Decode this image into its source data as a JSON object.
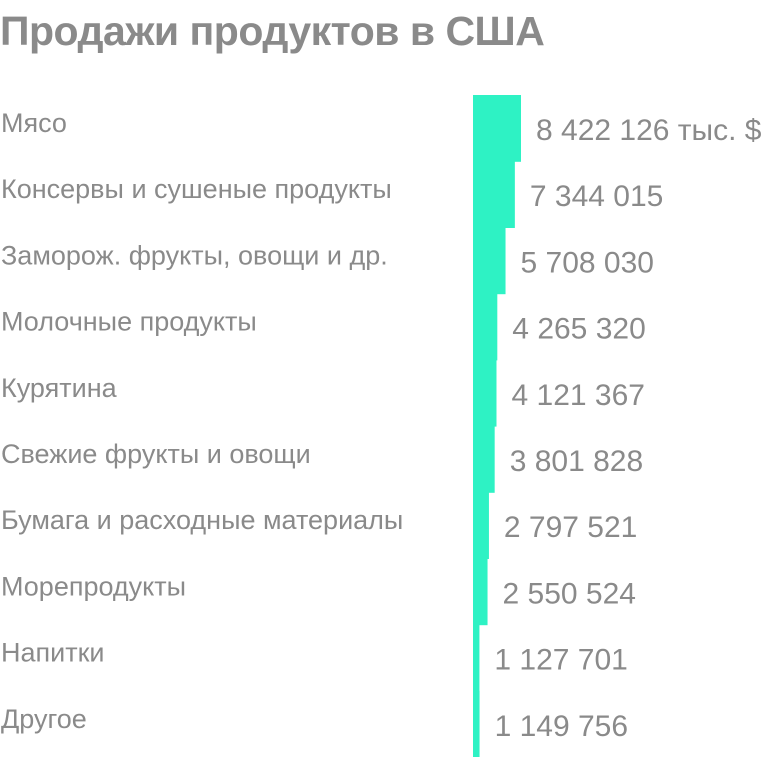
{
  "chart_data": {
    "type": "bar",
    "orientation": "horizontal",
    "title": "Продажи продуктов в США",
    "xlabel": "",
    "ylabel": "",
    "unit_label": "тыс. $",
    "categories": [
      "Мясо",
      "Консервы и сушеные продукты",
      "Заморож. фрукты, овощи и др.",
      "Молочные продукты",
      "Курятина",
      "Свежие фрукты и овощи",
      "Бумага и расходные материалы",
      "Морепродукты",
      "Напитки",
      "Другое"
    ],
    "values": [
      8422126,
      7344015,
      5708030,
      4265320,
      4121367,
      3801828,
      2797521,
      2550524,
      1127701,
      1149756
    ],
    "value_labels": [
      "8 422 126 тыс. $",
      "7 344 015",
      "5 708 030",
      "4 265 320",
      "4 121 367",
      "3 801 828",
      "2 797 521",
      "2 550 524",
      "1 127 701",
      "1 149 756"
    ],
    "bar_color": "#2ef2c4",
    "text_color": "#8a8a8a",
    "grid": false,
    "legend": "none"
  }
}
